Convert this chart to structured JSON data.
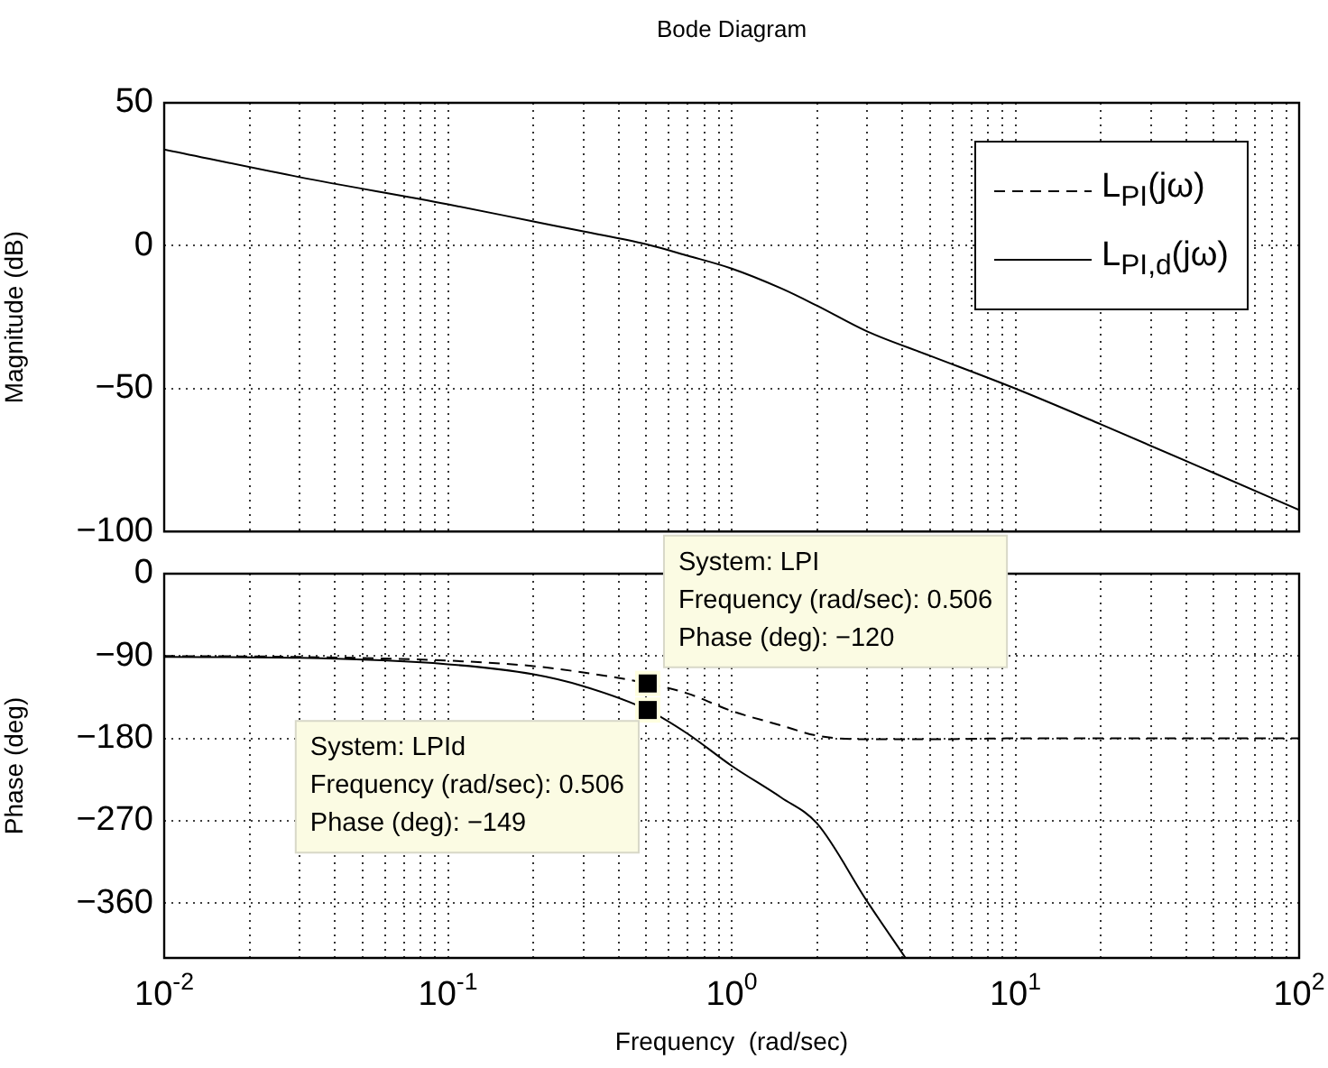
{
  "chart_data": [
    {
      "type": "line",
      "title": "Bode Diagram",
      "ylabel": "Magnitude (dB)",
      "log": "x",
      "grid": true,
      "legend": "top right",
      "tick_labels": "y",
      "xlim": [
        0.01,
        100
      ],
      "ylim": [
        -100,
        50
      ],
      "yticks": [
        -100,
        -50,
        0,
        50
      ],
      "xticks": [
        {
          "value": 0.01,
          "label": null
        },
        {
          "value": 0.02,
          "label": null
        },
        {
          "value": 0.03,
          "label": null
        },
        {
          "value": 0.04,
          "label": null
        },
        {
          "value": 0.05,
          "label": null
        },
        {
          "value": 0.06,
          "label": null
        },
        {
          "value": 0.07,
          "label": null
        },
        {
          "value": 0.08,
          "label": null
        },
        {
          "value": 0.09,
          "label": null
        },
        {
          "value": 0.1,
          "label": null
        },
        {
          "value": 0.2,
          "label": null
        },
        {
          "value": 0.3,
          "label": null
        },
        {
          "value": 0.4,
          "label": null
        },
        {
          "value": 0.5,
          "label": null
        },
        {
          "value": 0.6,
          "label": null
        },
        {
          "value": 0.7,
          "label": null
        },
        {
          "value": 0.8,
          "label": null
        },
        {
          "value": 0.9,
          "label": null
        },
        {
          "value": 1,
          "label": null
        },
        {
          "value": 2,
          "label": null
        },
        {
          "value": 3,
          "label": null
        },
        {
          "value": 4,
          "label": null
        },
        {
          "value": 5,
          "label": null
        },
        {
          "value": 6,
          "label": null
        },
        {
          "value": 7,
          "label": null
        },
        {
          "value": 8,
          "label": null
        },
        {
          "value": 9,
          "label": null
        },
        {
          "value": 10,
          "label": null
        },
        {
          "value": 20,
          "label": null
        },
        {
          "value": 30,
          "label": null
        },
        {
          "value": 40,
          "label": null
        },
        {
          "value": 50,
          "label": null
        },
        {
          "value": 60,
          "label": null
        },
        {
          "value": 70,
          "label": null
        },
        {
          "value": 80,
          "label": null
        },
        {
          "value": 90,
          "label": null
        },
        {
          "value": 100,
          "label": null
        }
      ],
      "x": [
        0.01,
        0.03,
        0.1,
        0.2,
        0.3,
        0.5,
        0.7,
        1,
        1.5,
        2,
        3,
        5,
        10,
        20,
        50,
        100
      ],
      "series": [
        {
          "name": "L$_{PI}$(jω)",
          "color": "#000000",
          "line_style": "dashed",
          "values": [
            null,
            null,
            null,
            null,
            null,
            null,
            null,
            null,
            null,
            null,
            null,
            null,
            null,
            null,
            null,
            null
          ]
        },
        {
          "name": "L$_{PI,d}$(jω)",
          "color": "#000000",
          "line_style": "solid",
          "values": [
            33.7,
            24,
            14.5,
            8.5,
            5,
            0.5,
            -3.5,
            -8,
            -15,
            -21,
            -30,
            -38.5,
            -50,
            -62.5,
            -79.5,
            -92.5
          ]
        }
      ]
    },
    {
      "type": "line",
      "ylabel": "Phase (deg)",
      "xlabel": "Frequency  (rad/sec)",
      "log": "x",
      "grid": true,
      "xlim": [
        0.01,
        100
      ],
      "ylim": [
        -420,
        0
      ],
      "yticks": [
        -360,
        -270,
        -180,
        -90,
        0
      ],
      "xticks": [
        {
          "value": 0.01,
          "label": "10$^{-2}$"
        },
        {
          "value": 0.02,
          "label": null
        },
        {
          "value": 0.03,
          "label": null
        },
        {
          "value": 0.04,
          "label": null
        },
        {
          "value": 0.05,
          "label": null
        },
        {
          "value": 0.06,
          "label": null
        },
        {
          "value": 0.07,
          "label": null
        },
        {
          "value": 0.08,
          "label": null
        },
        {
          "value": 0.09,
          "label": null
        },
        {
          "value": 0.1,
          "label": "10$^{-1}$"
        },
        {
          "value": 0.2,
          "label": null
        },
        {
          "value": 0.3,
          "label": null
        },
        {
          "value": 0.4,
          "label": null
        },
        {
          "value": 0.5,
          "label": null
        },
        {
          "value": 0.6,
          "label": null
        },
        {
          "value": 0.7,
          "label": null
        },
        {
          "value": 0.8,
          "label": null
        },
        {
          "value": 0.9,
          "label": null
        },
        {
          "value": 1,
          "label": "10$^{0}$"
        },
        {
          "value": 2,
          "label": null
        },
        {
          "value": 3,
          "label": null
        },
        {
          "value": 4,
          "label": null
        },
        {
          "value": 5,
          "label": null
        },
        {
          "value": 6,
          "label": null
        },
        {
          "value": 7,
          "label": null
        },
        {
          "value": 8,
          "label": null
        },
        {
          "value": 9,
          "label": null
        },
        {
          "value": 10,
          "label": "10$^{1}$"
        },
        {
          "value": 20,
          "label": null
        },
        {
          "value": 30,
          "label": null
        },
        {
          "value": 40,
          "label": null
        },
        {
          "value": 50,
          "label": null
        },
        {
          "value": 60,
          "label": null
        },
        {
          "value": 70,
          "label": null
        },
        {
          "value": 80,
          "label": null
        },
        {
          "value": 90,
          "label": null
        },
        {
          "value": 100,
          "label": "10$^{2}$"
        }
      ],
      "series": [
        {
          "color": "#000000",
          "line_style": "dashed",
          "x": [
            0.01,
            0.03,
            0.1,
            0.2,
            0.3,
            0.506,
            0.7,
            1,
            1.5,
            2,
            3,
            5,
            10,
            30,
            100
          ],
          "values": [
            -90,
            -91,
            -95,
            -101,
            -108,
            -120,
            -131,
            -150,
            -166,
            -177,
            -181,
            -181,
            -180,
            -180,
            -180
          ]
        },
        {
          "color": "#000000",
          "line_style": "solid",
          "x": [
            0.01,
            0.03,
            0.1,
            0.2,
            0.3,
            0.506,
            0.7,
            1,
            1.5,
            2,
            3,
            4.1
          ],
          "values": [
            -91,
            -92,
            -99,
            -110,
            -123,
            -149,
            -175,
            -210,
            -245,
            -273,
            -358,
            -420
          ]
        }
      ],
      "annotations": [
        {
          "text": "System: LPI\nFrequency (rad/sec): 0.506\nPhase (deg): −120",
          "x": 0.506,
          "y": -120
        },
        {
          "text": "System: LPId\nFrequency (rad/sec): 0.506\nPhase (deg): −149",
          "x": 0.506,
          "y": -149
        }
      ]
    }
  ]
}
